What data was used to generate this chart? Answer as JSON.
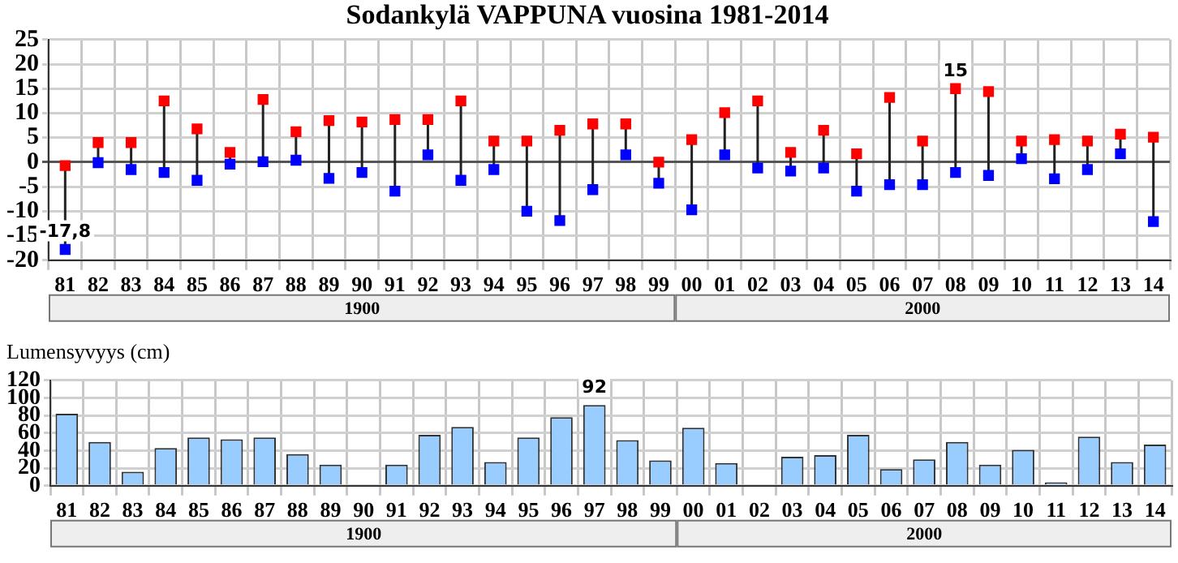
{
  "chart_data": [
    {
      "type": "scatter",
      "title": "Sodankylä VAPPUNA vuosina 1981-2014",
      "categories": [
        "81",
        "82",
        "83",
        "84",
        "85",
        "86",
        "87",
        "88",
        "89",
        "90",
        "91",
        "92",
        "93",
        "94",
        "95",
        "96",
        "97",
        "98",
        "99",
        "00",
        "01",
        "02",
        "03",
        "04",
        "05",
        "06",
        "07",
        "08",
        "09",
        "10",
        "11",
        "12",
        "13",
        "14"
      ],
      "series": [
        {
          "color": "#ff0000",
          "values": [
            -0.7,
            4,
            4,
            12.5,
            6.8,
            2,
            12.8,
            6.2,
            8.5,
            8.2,
            8.7,
            8.7,
            12.5,
            4.3,
            4.3,
            6.5,
            7.8,
            7.8,
            0,
            4.6,
            10.1,
            12.5,
            2,
            6.5,
            1.7,
            13.2,
            4.3,
            15,
            14.4,
            4.3,
            4.6,
            4.3,
            5.7,
            5.1
          ],
          "value_labels": [
            null,
            null,
            null,
            null,
            null,
            null,
            null,
            null,
            null,
            null,
            null,
            null,
            null,
            null,
            null,
            null,
            null,
            null,
            null,
            null,
            null,
            null,
            null,
            null,
            null,
            null,
            null,
            "15",
            null,
            null,
            null,
            null,
            null,
            null
          ]
        },
        {
          "color": "#0000ff",
          "values": [
            -17.8,
            -0.1,
            -1.5,
            -2.1,
            -3.7,
            -0.4,
            0.1,
            0.4,
            -3.3,
            -2.1,
            -5.9,
            1.5,
            -3.7,
            -1.5,
            -10,
            -11.9,
            -5.6,
            1.5,
            -4.3,
            -9.7,
            1.5,
            -1.2,
            -1.8,
            -1.2,
            -5.9,
            -4.6,
            -4.6,
            -2.1,
            -2.7,
            0.7,
            -3.4,
            -1.5,
            1.7,
            -12.1
          ],
          "value_labels": [
            "-17,8",
            null,
            null,
            null,
            null,
            null,
            null,
            null,
            null,
            null,
            null,
            null,
            null,
            null,
            null,
            null,
            null,
            null,
            null,
            null,
            null,
            null,
            null,
            null,
            null,
            null,
            null,
            null,
            null,
            null,
            null,
            null,
            null,
            null
          ]
        }
      ],
      "ylim": [
        -20,
        25
      ],
      "yticks": [
        -20,
        -15,
        -10,
        -5,
        0,
        5,
        10,
        15,
        20,
        25
      ],
      "grid": true,
      "legend": false,
      "marker": "square",
      "annotations": [
        "1900",
        "2000"
      ]
    },
    {
      "type": "bar",
      "ylabel": "Lumensyvyys (cm)",
      "categories": [
        "81",
        "82",
        "83",
        "84",
        "85",
        "86",
        "87",
        "88",
        "89",
        "90",
        "91",
        "92",
        "93",
        "94",
        "95",
        "96",
        "97",
        "98",
        "99",
        "00",
        "01",
        "02",
        "03",
        "04",
        "05",
        "06",
        "07",
        "08",
        "09",
        "10",
        "11",
        "12",
        "13",
        "14"
      ],
      "values": [
        82,
        50,
        16,
        43,
        55,
        53,
        55,
        36,
        24,
        0,
        24,
        58,
        67,
        27,
        55,
        78,
        92,
        52,
        29,
        66,
        26,
        0,
        33,
        35,
        58,
        19,
        30,
        50,
        24,
        41,
        4,
        56,
        27,
        47
      ],
      "value_labels": [
        null,
        null,
        null,
        null,
        null,
        null,
        null,
        null,
        null,
        null,
        null,
        null,
        null,
        null,
        null,
        null,
        "92",
        null,
        null,
        null,
        null,
        null,
        null,
        null,
        null,
        null,
        null,
        null,
        null,
        null,
        null,
        null,
        null,
        null
      ],
      "color": "#99ccff",
      "ylim": [
        0,
        120
      ],
      "yticks": [
        0,
        20,
        40,
        60,
        80,
        100,
        120
      ],
      "grid": true,
      "legend": false,
      "annotations": [
        "1900",
        "2000"
      ]
    }
  ]
}
